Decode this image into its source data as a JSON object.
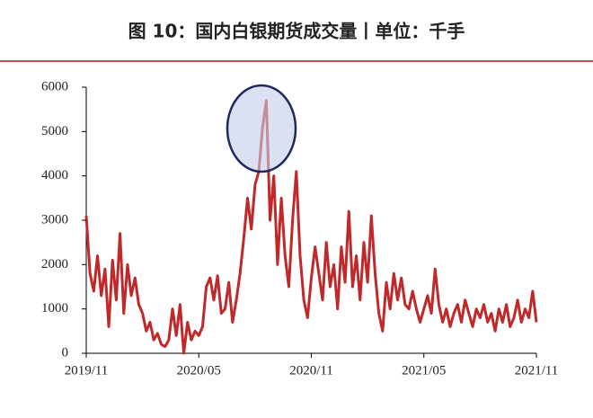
{
  "chart_data": {
    "type": "line",
    "title": "图 10：国内白银期货成交量丨单位：千手",
    "categories": [
      "2019/11",
      null,
      null,
      null,
      null,
      null,
      null,
      null,
      null,
      null,
      null,
      null,
      null,
      null,
      null,
      null,
      null,
      null,
      null,
      null,
      null,
      null,
      null,
      null,
      null,
      null,
      null,
      null,
      null,
      null,
      "2020/05",
      null,
      null,
      null,
      null,
      null,
      null,
      null,
      null,
      null,
      null,
      null,
      null,
      null,
      null,
      null,
      null,
      null,
      null,
      null,
      null,
      null,
      null,
      null,
      null,
      null,
      null,
      null,
      null,
      null,
      "2020/11",
      null,
      null,
      null,
      null,
      null,
      null,
      null,
      null,
      null,
      null,
      null,
      null,
      null,
      null,
      null,
      null,
      null,
      null,
      null,
      null,
      null,
      null,
      null,
      null,
      null,
      null,
      null,
      null,
      null,
      "2021/05",
      null,
      null,
      null,
      null,
      null,
      null,
      null,
      null,
      null,
      null,
      null,
      null,
      null,
      null,
      null,
      null,
      null,
      null,
      null,
      null,
      null,
      null,
      null,
      null,
      null,
      null,
      null,
      null,
      null,
      "2021/11"
    ],
    "values": [
      3100,
      1800,
      1400,
      2200,
      1300,
      1900,
      600,
      2100,
      1200,
      2700,
      900,
      2000,
      1300,
      1700,
      1100,
      900,
      500,
      700,
      300,
      450,
      200,
      150,
      300,
      1000,
      400,
      1100,
      0,
      700,
      300,
      500,
      400,
      600,
      1500,
      1700,
      1200,
      1750,
      900,
      1000,
      1600,
      700,
      1200,
      1800,
      2600,
      3500,
      2800,
      3800,
      4100,
      5100,
      5700,
      3000,
      4000,
      2000,
      3500,
      2200,
      1500,
      3000,
      4100,
      2200,
      1200,
      800,
      1700,
      2400,
      1800,
      1200,
      2500,
      1500,
      2000,
      1000,
      2400,
      1600,
      3200,
      1500,
      2200,
      1200,
      2500,
      1600,
      3100,
      1800,
      900,
      500,
      1600,
      1000,
      1800,
      1200,
      1700,
      1100,
      1000,
      1400,
      1000,
      700,
      1000,
      1300,
      900,
      1900,
      1100,
      700,
      1000,
      600,
      900,
      1100,
      700,
      1200,
      900,
      600,
      1000,
      800,
      1100,
      700,
      900,
      500,
      1000,
      700,
      1100,
      600,
      800,
      1200,
      700,
      1000,
      800,
      1400,
      700
    ],
    "color": "#c0282a",
    "ylim": [
      0,
      6000
    ],
    "yticks": [
      0,
      1000,
      2000,
      3000,
      4000,
      5000,
      6000
    ],
    "grid": false
  }
}
